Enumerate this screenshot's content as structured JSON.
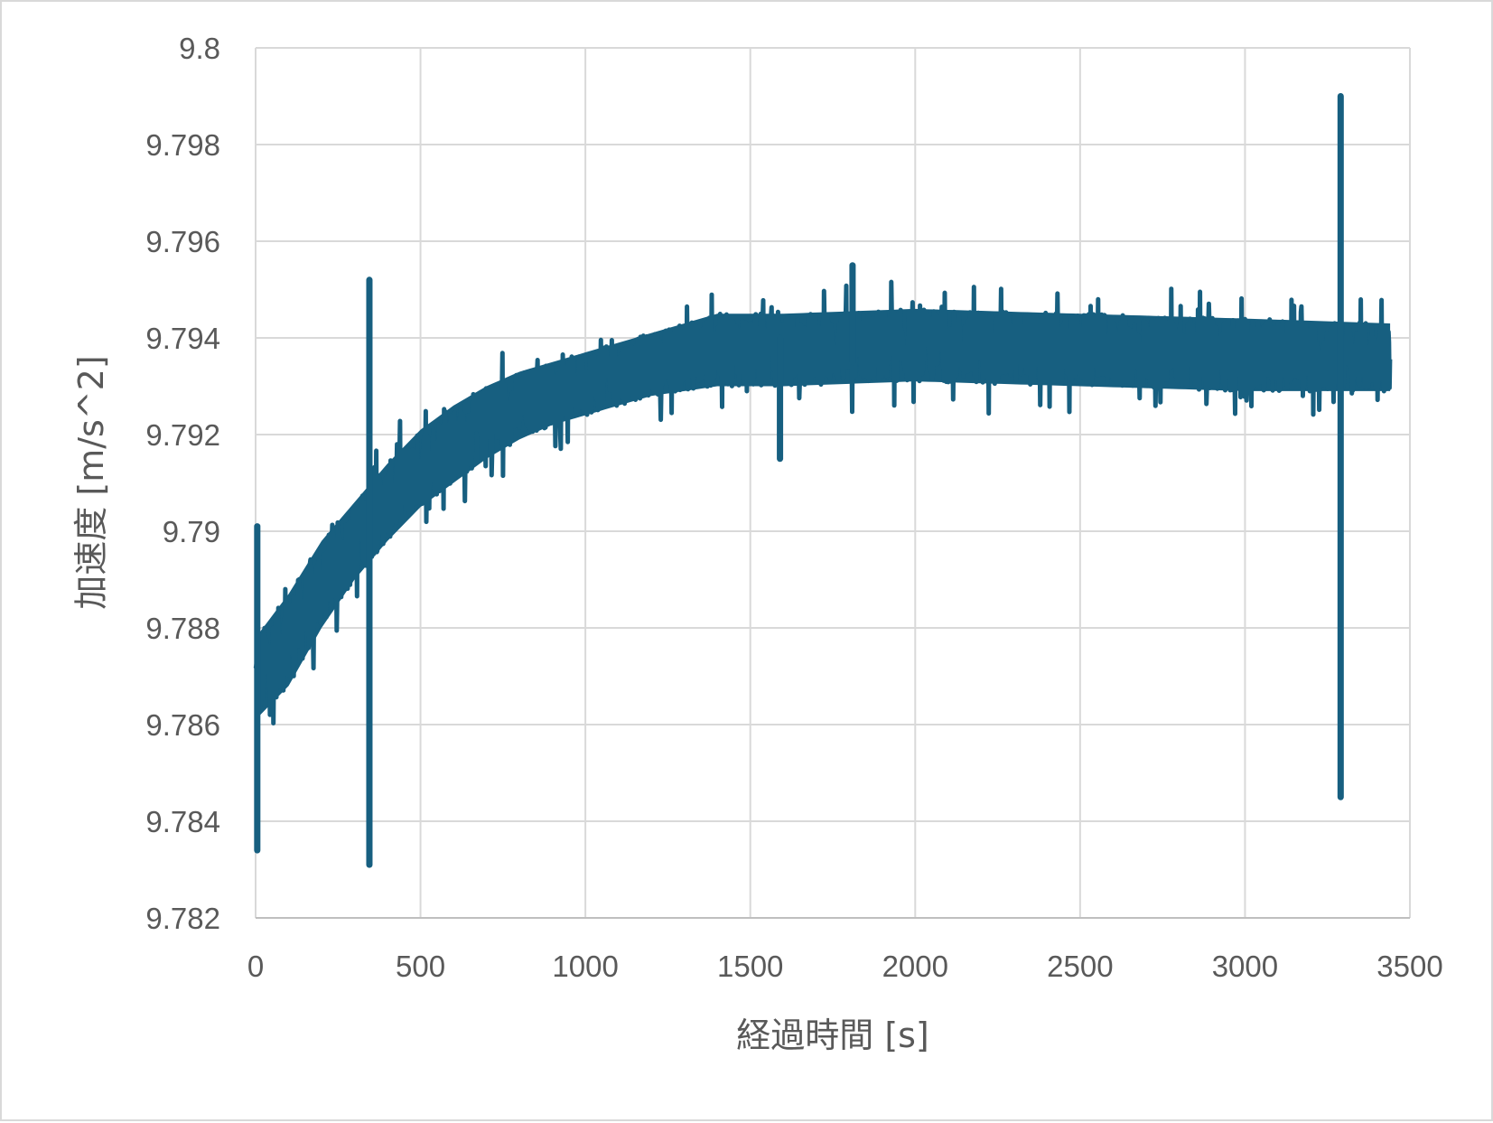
{
  "chart_data": {
    "type": "line",
    "title": "",
    "xlabel": "経過時間 [s]",
    "ylabel": "加速度 [m/s^2]",
    "xlim": [
      0,
      3500
    ],
    "ylim": [
      9.782,
      9.8
    ],
    "x_ticks": [
      "0",
      "500",
      "1000",
      "1500",
      "2000",
      "2500",
      "3000",
      "3500"
    ],
    "y_ticks": [
      "9.782",
      "9.784",
      "9.786",
      "9.788",
      "9.79",
      "9.792",
      "9.794",
      "9.796",
      "9.798",
      "9.8"
    ],
    "grid": true,
    "legend": "none",
    "series_color": "#175f80",
    "series": [
      {
        "name": "加速度",
        "note_envelope": "noisy signal band (lower, upper) sampled at x",
        "x": [
          0,
          100,
          200,
          300,
          400,
          500,
          600,
          700,
          800,
          900,
          1000,
          1100,
          1200,
          1300,
          1400,
          1600,
          2000,
          2500,
          3000,
          3440
        ],
        "lower": [
          9.7861,
          9.7868,
          9.788,
          9.789,
          9.7898,
          9.7905,
          9.791,
          9.7915,
          9.7919,
          9.7922,
          9.7924,
          9.7926,
          9.7928,
          9.7929,
          9.793,
          9.793,
          9.7931,
          9.793,
          9.7929,
          9.7929
        ],
        "upper": [
          9.7878,
          9.7887,
          9.7898,
          9.7906,
          9.7914,
          9.7921,
          9.7926,
          9.793,
          9.7933,
          9.7935,
          9.7937,
          9.7939,
          9.7941,
          9.7943,
          9.7945,
          9.7945,
          9.7946,
          9.7945,
          9.7944,
          9.7943
        ],
        "spikes": [
          {
            "x": 5,
            "high": 9.7901,
            "low": 9.7834
          },
          {
            "x": 345,
            "high": 9.7952,
            "low": 9.7831
          },
          {
            "x": 1590,
            "high": 9.794,
            "low": 9.7915
          },
          {
            "x": 1810,
            "high": 9.7955,
            "low": 9.7935
          },
          {
            "x": 3290,
            "high": 9.799,
            "low": 9.7845
          }
        ]
      }
    ]
  }
}
